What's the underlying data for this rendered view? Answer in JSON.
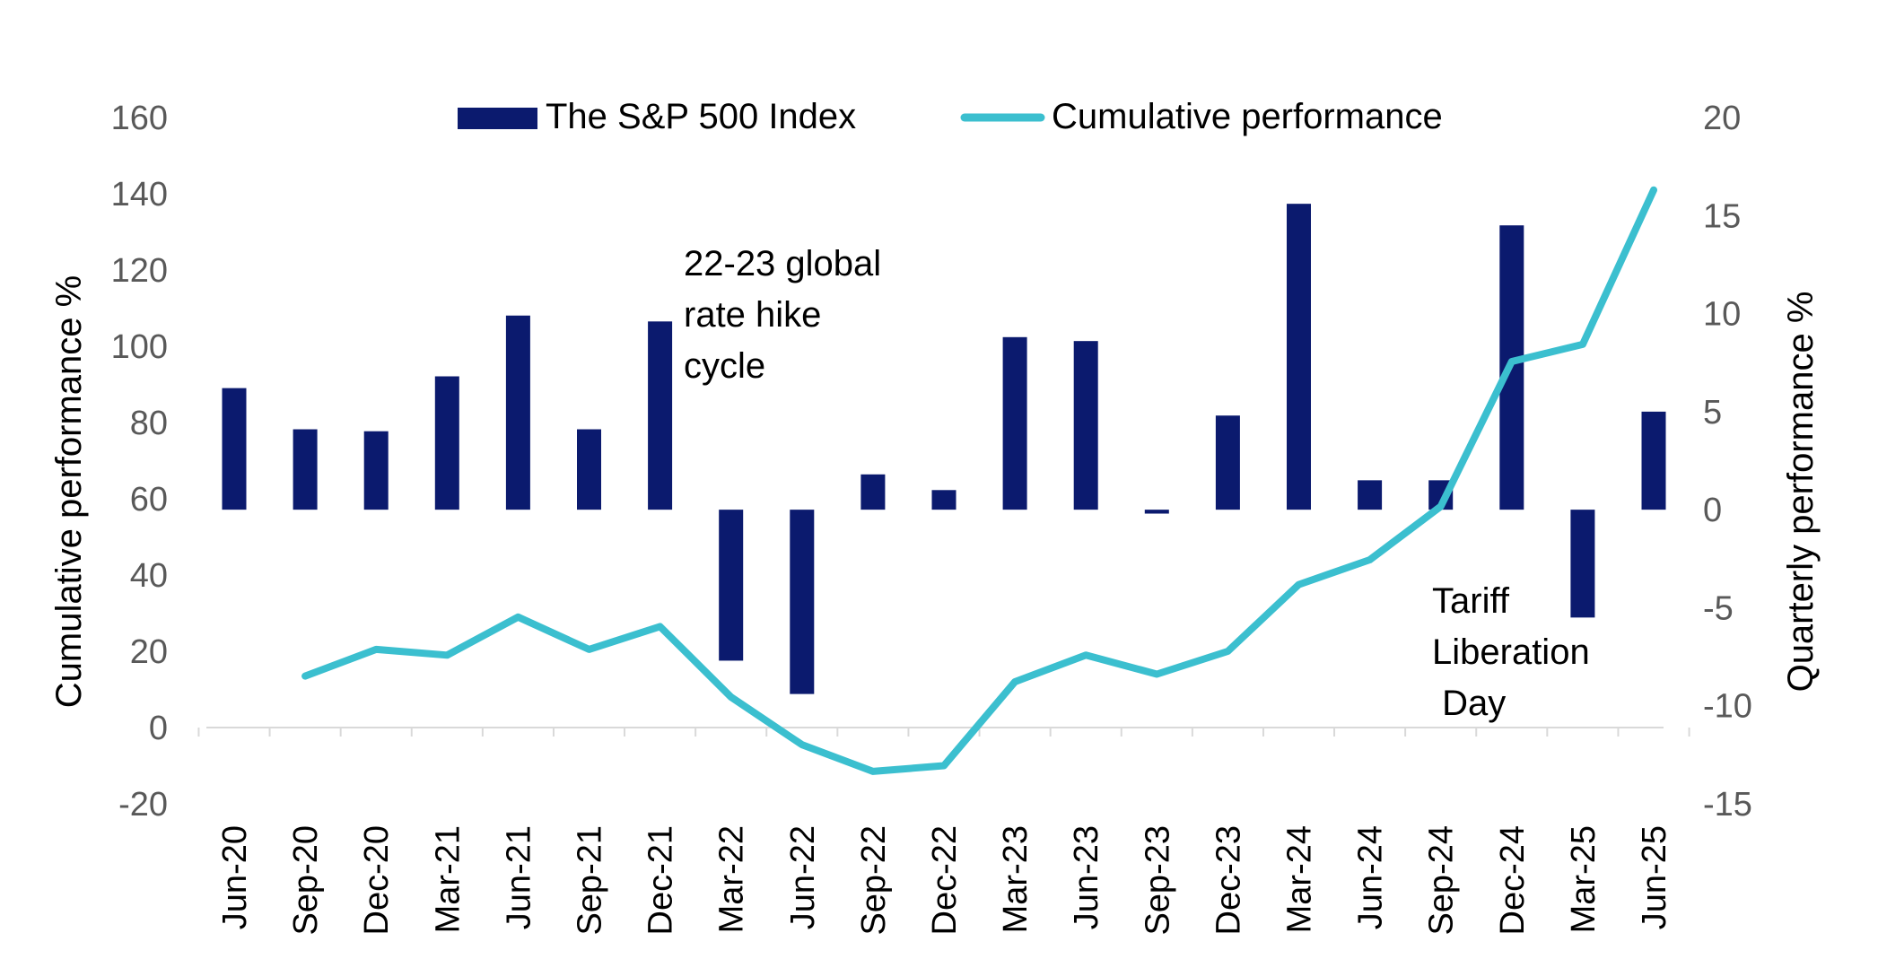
{
  "chart_data": {
    "type": "bar+line",
    "categories": [
      "Jun-20",
      "Sep-20",
      "Dec-20",
      "Mar-21",
      "Jun-21",
      "Sep-21",
      "Dec-21",
      "Mar-22",
      "Jun-22",
      "Sep-22",
      "Dec-22",
      "Mar-23",
      "Jun-23",
      "Sep-23",
      "Dec-23",
      "Mar-24",
      "Jun-24",
      "Sep-24",
      "Dec-24",
      "Mar-25",
      "Jun-25"
    ],
    "series": [
      {
        "name": "The S&P 500 Index",
        "type": "bar",
        "axis": "right",
        "color": "#0b1a6e",
        "values": [
          6.2,
          4.1,
          4.0,
          6.8,
          9.9,
          4.1,
          9.6,
          -7.7,
          -9.4,
          1.8,
          1.0,
          8.8,
          8.6,
          -0.2,
          4.8,
          15.6,
          1.5,
          1.5,
          14.5,
          -5.5,
          5.0
        ]
      },
      {
        "name": "Cumulative performance",
        "type": "line",
        "axis": "left",
        "color": "#3bbfcf",
        "values": [
          null,
          13.5,
          20.5,
          19.0,
          29.0,
          20.5,
          26.5,
          8.0,
          -4.5,
          -11.5,
          -10.0,
          12.0,
          19.0,
          14.0,
          20.0,
          37.5,
          44.0,
          58.0,
          96.0,
          100.5,
          141.0
        ]
      }
    ],
    "left_axis": {
      "label": "Cumulative performance %",
      "ylim": [
        -20,
        160
      ],
      "ticks": [
        "160",
        "140",
        "120",
        "100",
        "80",
        "60",
        "40",
        "20",
        "0",
        "-20"
      ],
      "tick_values": [
        160,
        140,
        120,
        100,
        80,
        60,
        40,
        20,
        0,
        -20
      ]
    },
    "right_axis": {
      "label": "Quarterly performance %",
      "ylim": [
        -15,
        20
      ],
      "ticks": [
        "20",
        "15",
        "10",
        "5",
        "0",
        "-5",
        "-10",
        "-15"
      ],
      "tick_values": [
        20,
        15,
        10,
        5,
        0,
        -5,
        -10,
        -15
      ]
    },
    "legend": {
      "position": "top-center",
      "bar_label": "The S&P 500 Index",
      "line_label": "Cumulative performance"
    },
    "annotations": {
      "rate_hike": [
        "22-23 global",
        "rate hike",
        "cycle"
      ],
      "tariff": [
        "Tariff",
        "Liberation",
        " Day"
      ]
    },
    "grid": false
  }
}
